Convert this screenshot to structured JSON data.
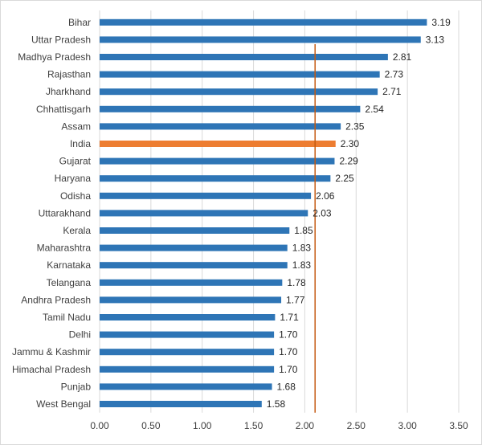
{
  "chart_data": {
    "type": "bar",
    "orientation": "horizontal",
    "title": "",
    "xlabel": "",
    "ylabel": "",
    "xlim": [
      0,
      3.5
    ],
    "xticks": [
      "0.00",
      "0.50",
      "1.00",
      "1.50",
      "2.00",
      "2.50",
      "3.00",
      "3.50"
    ],
    "grid": "vertical",
    "legend": "none",
    "reference_line": {
      "value": 2.1,
      "color": "#c55a11"
    },
    "colors": {
      "bar": "#2e75b6",
      "highlight": "#ed7d31",
      "grid": "#d9d9d9"
    },
    "highlight_category": "India",
    "categories": [
      "Bihar",
      "Uttar Pradesh",
      "Madhya Pradesh",
      "Rajasthan",
      "Jharkhand",
      "Chhattisgarh",
      "Assam",
      "India",
      "Gujarat",
      "Haryana",
      "Odisha",
      "Uttarakhand",
      "Kerala",
      "Maharashtra",
      "Karnataka",
      "Telangana",
      "Andhra Pradesh",
      "Tamil Nadu",
      "Delhi",
      "Jammu & Kashmir",
      "Himachal Pradesh",
      "Punjab",
      "West Bengal"
    ],
    "values": [
      3.19,
      3.13,
      2.81,
      2.73,
      2.71,
      2.54,
      2.35,
      2.3,
      2.29,
      2.25,
      2.06,
      2.03,
      1.85,
      1.83,
      1.83,
      1.78,
      1.77,
      1.71,
      1.7,
      1.7,
      1.7,
      1.68,
      1.58
    ],
    "value_labels": [
      "3.19",
      "3.13",
      "2.81",
      "2.73",
      "2.71",
      "2.54",
      "2.35",
      "2.30",
      "2.29",
      "2.25",
      "2.06",
      "2.03",
      "1.85",
      "1.83",
      "1.83",
      "1.78",
      "1.77",
      "1.71",
      "1.70",
      "1.70",
      "1.70",
      "1.68",
      "1.58"
    ]
  }
}
